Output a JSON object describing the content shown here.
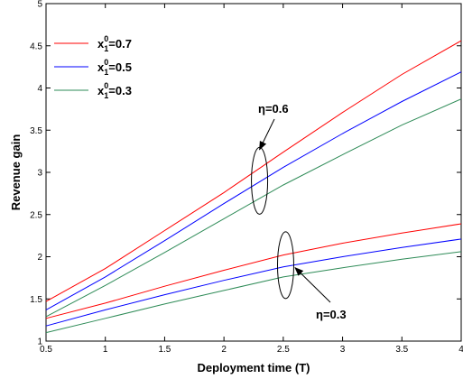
{
  "chart_data": {
    "type": "line",
    "xlabel": "Deployment time (T)",
    "ylabel": "Revenue gain",
    "xlim": [
      0.5,
      4
    ],
    "ylim": [
      1,
      5
    ],
    "xticks": [
      0.5,
      1,
      1.5,
      2,
      2.5,
      3,
      3.5,
      4
    ],
    "yticks": [
      1,
      1.5,
      2,
      2.5,
      3,
      3.5,
      4,
      4.5,
      5
    ],
    "x": [
      0.5,
      1,
      1.5,
      2,
      2.5,
      3,
      3.5,
      4
    ],
    "series": [
      {
        "name": "x1^0=0.7",
        "group": "η=0.6",
        "color": "#ff0000",
        "values": [
          1.47,
          1.86,
          2.31,
          2.76,
          3.24,
          3.71,
          4.16,
          4.56
        ]
      },
      {
        "name": "x1^0=0.5",
        "group": "η=0.6",
        "color": "#0000ff",
        "values": [
          1.37,
          1.76,
          2.19,
          2.63,
          3.06,
          3.46,
          3.84,
          4.19
        ]
      },
      {
        "name": "x1^0=0.3",
        "group": "η=0.6",
        "color": "#2e8b57",
        "values": [
          1.29,
          1.66,
          2.05,
          2.45,
          2.85,
          3.21,
          3.56,
          3.87
        ]
      },
      {
        "name": "x1^0=0.7",
        "group": "η=0.3",
        "color": "#ff0000",
        "values": [
          1.27,
          1.45,
          1.65,
          1.84,
          2.02,
          2.16,
          2.28,
          2.39
        ]
      },
      {
        "name": "x1^0=0.5",
        "group": "η=0.3",
        "color": "#0000ff",
        "values": [
          1.18,
          1.37,
          1.55,
          1.72,
          1.88,
          2.0,
          2.11,
          2.21
        ]
      },
      {
        "name": "x1^0=0.3",
        "group": "η=0.3",
        "color": "#2e8b57",
        "values": [
          1.1,
          1.27,
          1.44,
          1.6,
          1.76,
          1.87,
          1.97,
          2.06
        ]
      }
    ],
    "legend": {
      "placement": "top-left",
      "entries": [
        {
          "base": "x",
          "sup": "0",
          "sub": "1",
          "value": "=0.7",
          "color": "#ff0000"
        },
        {
          "base": "x",
          "sup": "0",
          "sub": "1",
          "value": "=0.5",
          "color": "#0000ff"
        },
        {
          "base": "x",
          "sup": "0",
          "sub": "1",
          "value": "=0.3",
          "color": "#2e8b57"
        }
      ]
    },
    "annotations": [
      {
        "text": "η=0.6",
        "ellipse_at": [
          2.3,
          2.9
        ],
        "arrow_to": [
          2.3,
          3.27
        ]
      },
      {
        "text": "η=0.3",
        "ellipse_at": [
          2.52,
          1.9
        ],
        "arrow_to": [
          2.6,
          1.87
        ]
      }
    ],
    "grid": false
  }
}
